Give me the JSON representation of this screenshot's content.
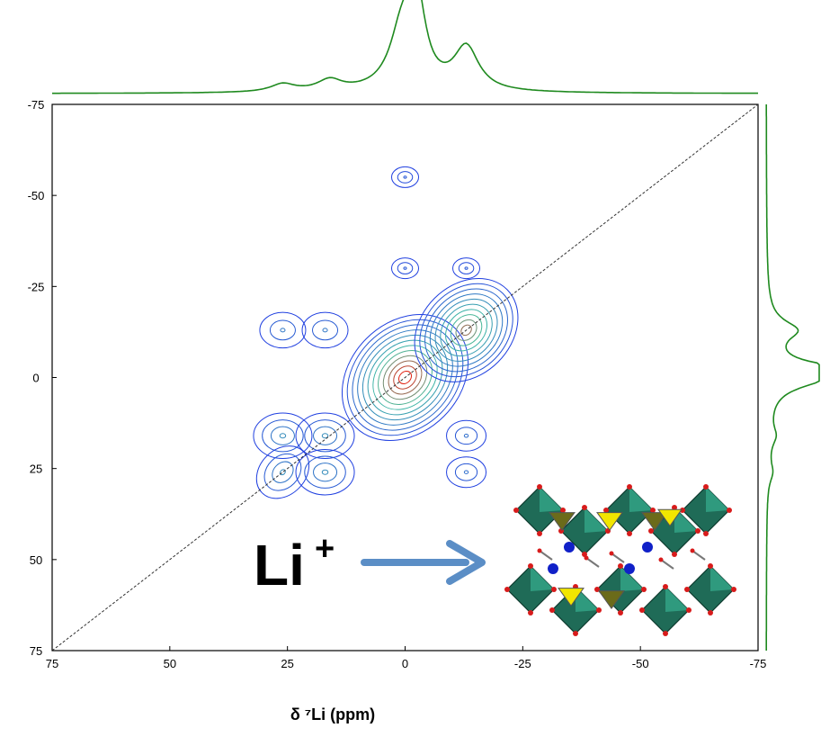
{
  "chart_data": {
    "type": "contour",
    "xlabel": "δ ⁷Li (ppm)",
    "ylabel": "",
    "title": "",
    "x_axis": {
      "range": [
        75,
        -75
      ],
      "ticks": [
        "75",
        "50",
        "25",
        "0",
        "-25",
        "-50",
        "-75"
      ]
    },
    "y_axis": {
      "range": [
        -75,
        75
      ],
      "ticks": [
        "-75",
        "-50",
        "-25",
        "0",
        "25",
        "50",
        "75"
      ]
    },
    "diagonal": {
      "from": [
        75,
        75
      ],
      "to": [
        -75,
        -75
      ],
      "style": "dashed"
    },
    "projection_peaks_ppm": [
      {
        "shift": -2.5,
        "height": 1.0
      },
      {
        "shift": 0.5,
        "height": 0.78
      },
      {
        "shift": -13,
        "height": 0.55
      },
      {
        "shift": 16,
        "height": 0.14
      },
      {
        "shift": 26,
        "height": 0.1
      }
    ],
    "cross_peaks": [
      {
        "f2": 0,
        "f1": 0,
        "intensity": 1.0
      },
      {
        "f2": -13,
        "f1": -13,
        "intensity": 0.8
      },
      {
        "f2": 26,
        "f1": -13,
        "intensity": 0.25
      },
      {
        "f2": 17,
        "f1": -13,
        "intensity": 0.25
      },
      {
        "f2": 26,
        "f1": 16,
        "intensity": 0.35
      },
      {
        "f2": 17,
        "f1": 16,
        "intensity": 0.35
      },
      {
        "f2": 26,
        "f1": 26,
        "intensity": 0.35
      },
      {
        "f2": 17,
        "f1": 26,
        "intensity": 0.35
      },
      {
        "f2": -13,
        "f1": 16,
        "intensity": 0.2
      },
      {
        "f2": -13,
        "f1": 26,
        "intensity": 0.2
      },
      {
        "f2": 0,
        "f1": -55,
        "intensity": 0.1
      },
      {
        "f2": 0,
        "f1": -30,
        "intensity": 0.1
      },
      {
        "f2": -13,
        "f1": -30,
        "intensity": 0.1
      }
    ],
    "colors": {
      "projection": "#1f8a1f",
      "contour_low": "#2040e0",
      "contour_mid": "#40c0a0",
      "contour_high": "#e02010",
      "arrow": "#5b8ec6"
    }
  },
  "annotation": {
    "label_main": "Li",
    "label_sup": "+"
  }
}
